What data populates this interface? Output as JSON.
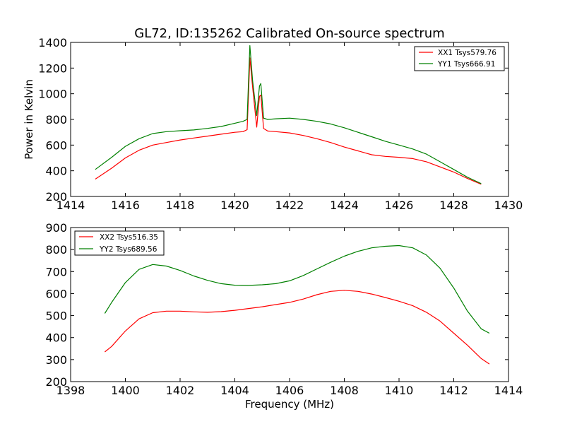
{
  "figure": {
    "title": "GL72, ID:135262 Calibrated On-source spectrum"
  },
  "chart_data": [
    {
      "type": "line",
      "title": "",
      "xlabel": "",
      "ylabel": "Power in Kelvin",
      "xlim": [
        1414,
        1430
      ],
      "ylim": [
        200,
        1400
      ],
      "xticks": [
        "1414",
        "1416",
        "1418",
        "1420",
        "1422",
        "1424",
        "1426",
        "1428",
        "1430"
      ],
      "yticks": [
        "200",
        "400",
        "600",
        "800",
        "1000",
        "1200",
        "1400"
      ],
      "legend_position": "top-right",
      "series": [
        {
          "name": "XX1 Tsys579.76",
          "color": "#ff0000",
          "x": [
            1414.9,
            1415.5,
            1416.0,
            1416.5,
            1417.0,
            1417.5,
            1418.0,
            1418.5,
            1419.0,
            1419.5,
            1420.0,
            1420.3,
            1420.45,
            1420.5,
            1420.55,
            1420.65,
            1420.8,
            1420.9,
            1420.95,
            1421.05,
            1421.2,
            1421.5,
            1422.0,
            1422.5,
            1423.0,
            1423.5,
            1424.0,
            1424.5,
            1425.0,
            1425.5,
            1426.0,
            1426.5,
            1427.0,
            1427.5,
            1428.0,
            1428.5,
            1429.0
          ],
          "y": [
            335,
            420,
            500,
            560,
            600,
            620,
            640,
            655,
            670,
            685,
            700,
            705,
            720,
            1000,
            1280,
            1050,
            740,
            980,
            990,
            730,
            710,
            705,
            695,
            675,
            650,
            620,
            585,
            555,
            525,
            512,
            505,
            495,
            470,
            430,
            390,
            340,
            295
          ]
        },
        {
          "name": "YY1 Tsys666.91",
          "color": "#008000",
          "x": [
            1414.9,
            1415.5,
            1416.0,
            1416.5,
            1417.0,
            1417.5,
            1418.0,
            1418.5,
            1419.0,
            1419.5,
            1420.0,
            1420.3,
            1420.45,
            1420.5,
            1420.55,
            1420.65,
            1420.8,
            1420.9,
            1420.95,
            1421.05,
            1421.2,
            1421.5,
            1422.0,
            1422.5,
            1423.0,
            1423.5,
            1424.0,
            1424.5,
            1425.0,
            1425.5,
            1426.0,
            1426.5,
            1427.0,
            1427.5,
            1428.0,
            1428.5,
            1429.0
          ],
          "y": [
            410,
            505,
            590,
            650,
            690,
            705,
            712,
            718,
            730,
            745,
            770,
            785,
            800,
            1100,
            1375,
            1100,
            830,
            1060,
            1080,
            810,
            800,
            805,
            810,
            800,
            785,
            765,
            735,
            700,
            665,
            630,
            600,
            570,
            530,
            470,
            410,
            350,
            300
          ]
        }
      ]
    },
    {
      "type": "line",
      "title": "",
      "xlabel": "Frequency (MHz)",
      "ylabel": "",
      "xlim": [
        1398,
        1414
      ],
      "ylim": [
        200,
        900
      ],
      "xticks": [
        "1398",
        "1400",
        "1402",
        "1404",
        "1406",
        "1408",
        "1410",
        "1412",
        "1414"
      ],
      "yticks": [
        "200",
        "300",
        "400",
        "500",
        "600",
        "700",
        "800",
        "900"
      ],
      "legend_position": "top-left",
      "series": [
        {
          "name": "XX2 Tsys516.35",
          "color": "#ff0000",
          "x": [
            1399.25,
            1399.5,
            1400.0,
            1400.5,
            1401.0,
            1401.5,
            1402.0,
            1402.5,
            1403.0,
            1403.5,
            1404.0,
            1404.5,
            1405.0,
            1405.5,
            1406.0,
            1406.5,
            1407.0,
            1407.5,
            1408.0,
            1408.5,
            1409.0,
            1409.5,
            1410.0,
            1410.5,
            1411.0,
            1411.5,
            1412.0,
            1412.5,
            1413.0,
            1413.3
          ],
          "y": [
            335,
            360,
            430,
            485,
            513,
            520,
            520,
            517,
            515,
            518,
            524,
            532,
            540,
            550,
            560,
            575,
            595,
            610,
            615,
            610,
            598,
            582,
            565,
            545,
            515,
            475,
            420,
            365,
            305,
            280
          ]
        },
        {
          "name": "YY2 Tsys689.56",
          "color": "#008000",
          "x": [
            1399.25,
            1399.5,
            1400.0,
            1400.5,
            1401.0,
            1401.5,
            1402.0,
            1402.5,
            1403.0,
            1403.5,
            1404.0,
            1404.5,
            1405.0,
            1405.5,
            1406.0,
            1406.5,
            1407.0,
            1407.5,
            1408.0,
            1408.5,
            1409.0,
            1409.5,
            1410.0,
            1410.5,
            1411.0,
            1411.5,
            1412.0,
            1412.5,
            1413.0,
            1413.3
          ],
          "y": [
            510,
            560,
            650,
            710,
            732,
            725,
            705,
            680,
            660,
            645,
            638,
            637,
            640,
            645,
            658,
            682,
            712,
            742,
            770,
            792,
            808,
            815,
            818,
            808,
            775,
            715,
            625,
            520,
            440,
            420
          ]
        }
      ]
    }
  ]
}
